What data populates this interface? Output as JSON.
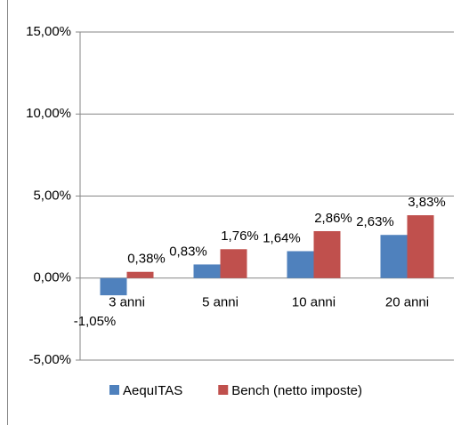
{
  "chart_data": {
    "type": "bar",
    "categories": [
      "3 anni",
      "5 anni",
      "10 anni",
      "20 anni"
    ],
    "series": [
      {
        "name": "AequITAS",
        "color": "#4f81bd",
        "values": [
          -1.05,
          0.83,
          1.64,
          2.63
        ],
        "value_labels": [
          "-1,05%",
          "0,83%",
          "1,64%",
          "2,63%"
        ]
      },
      {
        "name": "Bench (netto imposte)",
        "color": "#c0504d",
        "values": [
          0.38,
          1.76,
          2.86,
          3.83
        ],
        "value_labels": [
          "0,38%",
          "1,76%",
          "2,86%",
          "3,83%"
        ]
      }
    ],
    "ylim": [
      -5,
      15
    ],
    "yticks": [
      {
        "value": -5,
        "label": "-5,00%"
      },
      {
        "value": 0,
        "label": "0,00%"
      },
      {
        "value": 5,
        "label": "5,00%"
      },
      {
        "value": 10,
        "label": "10,00%"
      },
      {
        "value": 15,
        "label": "15,00%"
      }
    ],
    "grid": true,
    "legend": "bottom"
  }
}
